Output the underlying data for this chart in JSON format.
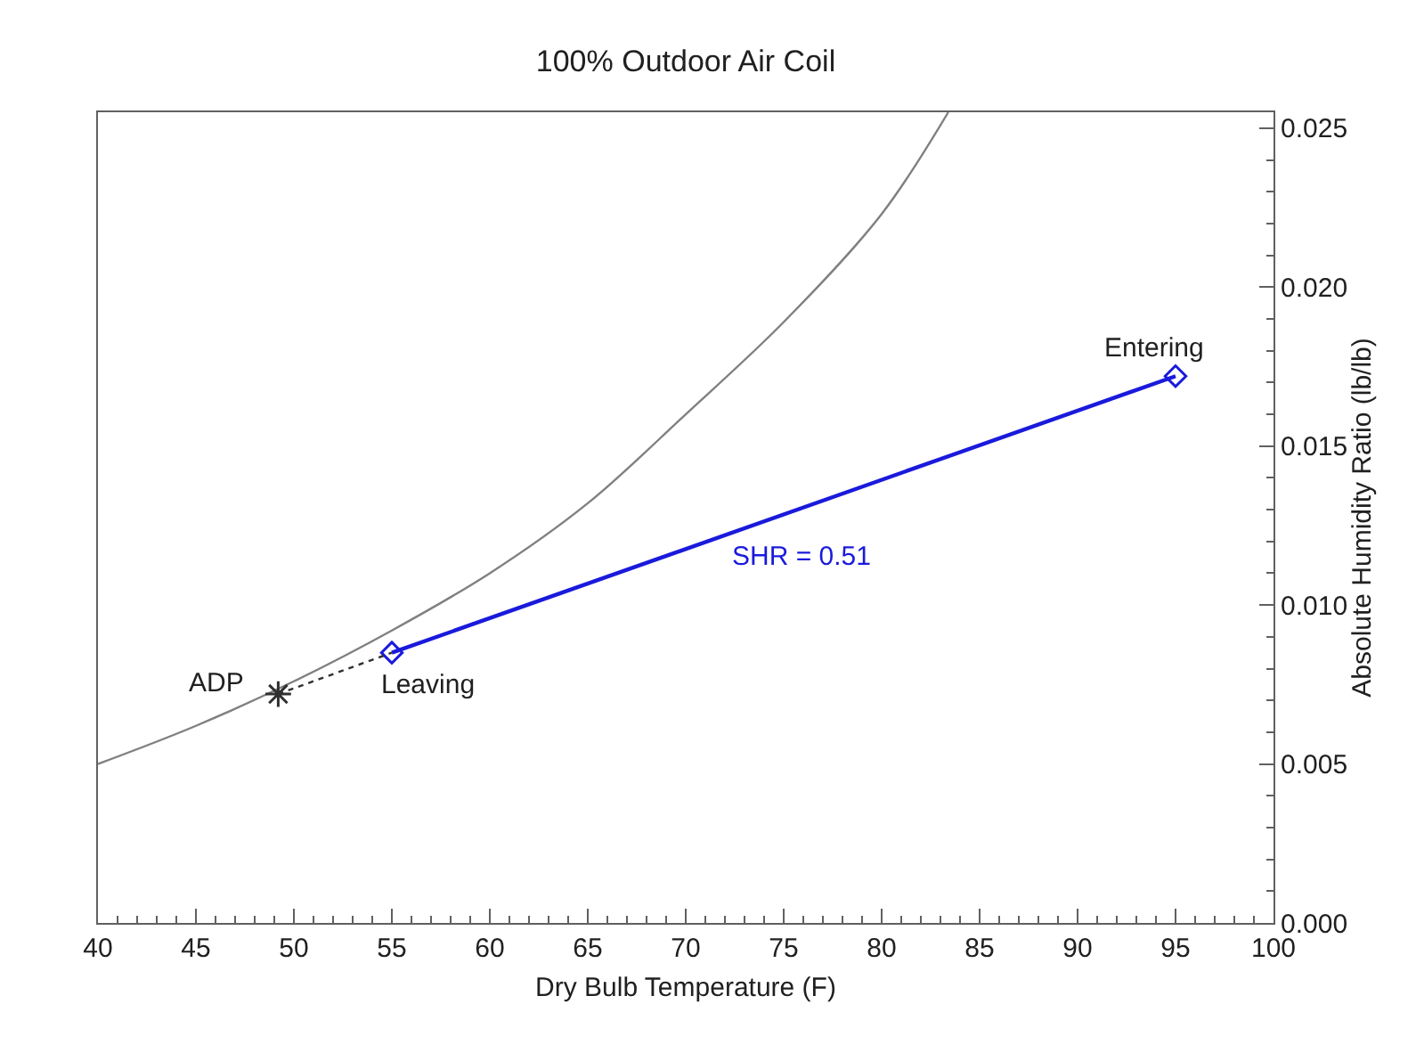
{
  "chart_data": {
    "type": "line",
    "title": "100% Outdoor Air Coil",
    "xlabel": "Dry Bulb Temperature (F)",
    "ylabel": "Absolute Humidity Ratio (lb/lb)",
    "xlim": [
      40,
      100
    ],
    "xticks": [
      40,
      45,
      50,
      55,
      60,
      65,
      70,
      75,
      80,
      85,
      90,
      95,
      100
    ],
    "ylim": [
      0,
      0.0255
    ],
    "yticks": [
      {
        "value": 0,
        "label": "0.000"
      },
      {
        "value": 0.005,
        "label": "0.005"
      },
      {
        "value": 0.01,
        "label": "0.010"
      },
      {
        "value": 0.015,
        "label": "0.015"
      },
      {
        "value": 0.02,
        "label": "0.020"
      },
      {
        "value": 0.025,
        "label": "0.025"
      }
    ],
    "series": [
      {
        "color": "#808080",
        "marker": "none",
        "line_style": "solid",
        "x": [
          40,
          45,
          50,
          55,
          60,
          65,
          70,
          75,
          80,
          83.4
        ],
        "values": [
          0.005,
          0.0062,
          0.0076,
          0.0092,
          0.011,
          0.0132,
          0.016,
          0.0189,
          0.0223,
          0.0255
        ]
      },
      {
        "color": "#1a1adc",
        "marker": "diamond",
        "line_style": "solid",
        "x": [
          55,
          95
        ],
        "values": [
          0.0085,
          0.0172
        ]
      },
      {
        "color": "#303030",
        "marker": "none",
        "line_style": "dotted",
        "x": [
          49.2,
          55
        ],
        "values": [
          0.0072,
          0.0085
        ]
      },
      {
        "type": "scatter",
        "color": "#303030",
        "marker": "cross",
        "x": [
          49.2
        ],
        "values": [
          0.0072
        ]
      }
    ],
    "annotations": [
      {
        "text": "Entering",
        "x": 95,
        "y": 0.0172
      },
      {
        "text": "Leaving",
        "x": 55,
        "y": 0.0085
      },
      {
        "text": "ADP",
        "x": 49.2,
        "y": 0.0072
      },
      {
        "text": "SHR = 0.51",
        "x": 75,
        "y": 0.01285
      }
    ]
  }
}
